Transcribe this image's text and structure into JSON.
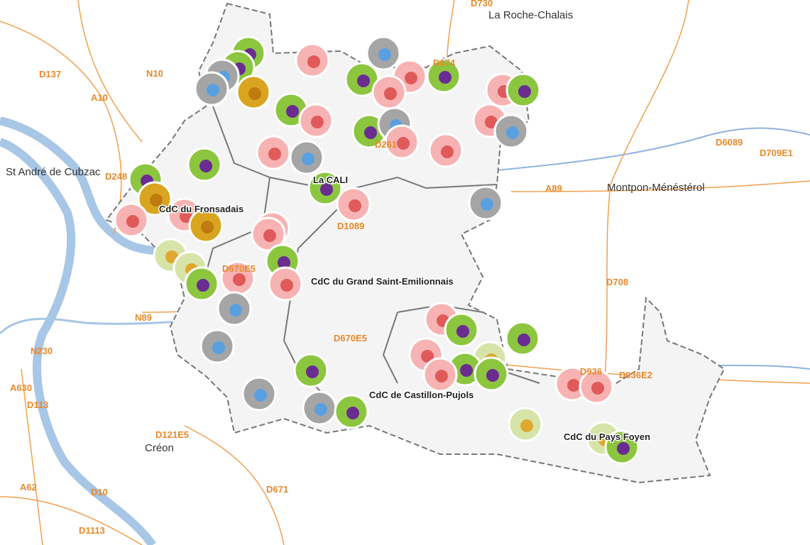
{
  "places": [
    "La Roche-Chalais",
    "St André de Cubzac",
    "Montpon-Ménéstérol",
    "Créon"
  ],
  "roads": [
    "D730",
    "D137",
    "N10",
    "A10",
    "D674",
    "D6089",
    "D709E1",
    "D248",
    "A89",
    "D261",
    "D1089",
    "D670E5",
    "D708",
    "N89",
    "N230",
    "A630",
    "D113",
    "D670E5",
    "D936",
    "D936E2",
    "D121E5",
    "D671",
    "A62",
    "D10",
    "D1113"
  ],
  "territories": [
    "CdC du Fronsadais",
    "La CALI",
    "CdC du Grand Saint-Emilionnais",
    "CdC de Castillon-Pujols",
    "CdC du Pays Foyen"
  ]
}
